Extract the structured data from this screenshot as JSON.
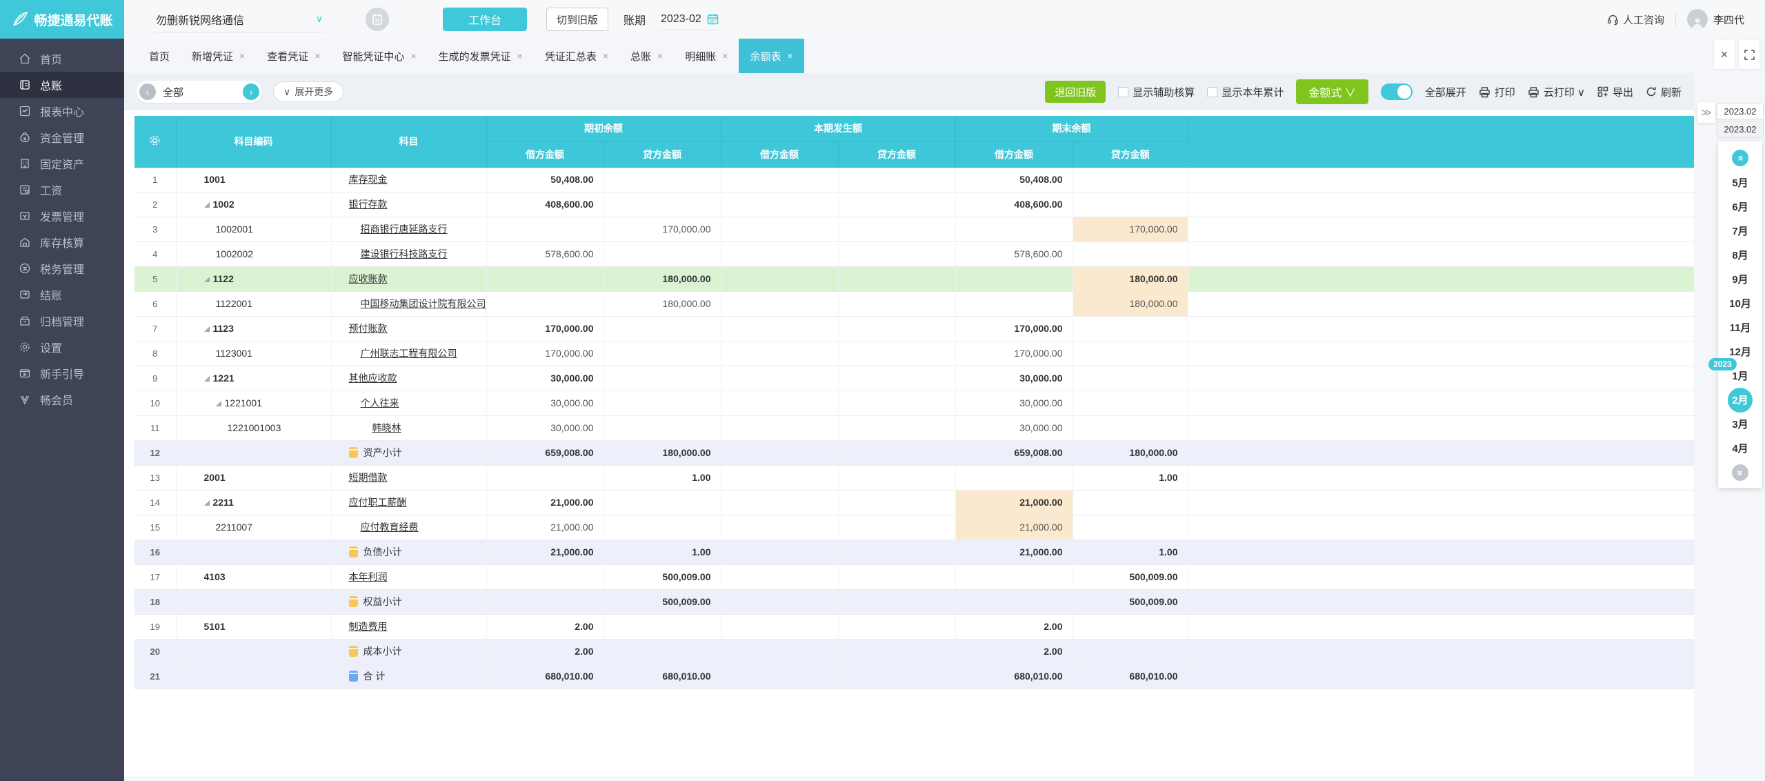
{
  "topbar": {
    "brand": "畅捷通易代账",
    "company": "勿删新锐网络通信",
    "workbench": "工作台",
    "switch_old": "切到旧版",
    "period_label": "账期",
    "period_value": "2023-02",
    "consult": "人工咨询",
    "username": "李四代"
  },
  "sidebar": {
    "items": [
      {
        "label": "首页",
        "icon": "home-icon",
        "active": false
      },
      {
        "label": "总账",
        "icon": "ledger-icon",
        "active": true
      },
      {
        "label": "报表中心",
        "icon": "report-icon",
        "active": false
      },
      {
        "label": "资金管理",
        "icon": "funds-icon",
        "active": false
      },
      {
        "label": "固定资产",
        "icon": "fixed-asset-icon",
        "active": false
      },
      {
        "label": "工资",
        "icon": "salary-icon",
        "active": false
      },
      {
        "label": "发票管理",
        "icon": "invoice-icon",
        "active": false
      },
      {
        "label": "库存核算",
        "icon": "inventory-icon",
        "active": false
      },
      {
        "label": "税务管理",
        "icon": "tax-icon",
        "active": false
      },
      {
        "label": "结账",
        "icon": "closing-icon",
        "active": false
      },
      {
        "label": "归档管理",
        "icon": "archive-icon",
        "active": false
      },
      {
        "label": "设置",
        "icon": "settings-icon",
        "active": false
      },
      {
        "label": "新手引导",
        "icon": "guide-icon",
        "active": false
      },
      {
        "label": "畅会员",
        "icon": "member-icon",
        "active": false
      }
    ]
  },
  "tabs": {
    "items": [
      {
        "label": "首页",
        "closable": false,
        "active": false
      },
      {
        "label": "新增凭证",
        "closable": true,
        "active": false
      },
      {
        "label": "查看凭证",
        "closable": true,
        "active": false
      },
      {
        "label": "智能凭证中心",
        "closable": true,
        "active": false
      },
      {
        "label": "生成的发票凭证",
        "closable": true,
        "active": false
      },
      {
        "label": "凭证汇总表",
        "closable": true,
        "active": false
      },
      {
        "label": "总账",
        "closable": true,
        "active": false
      },
      {
        "label": "明细账",
        "closable": true,
        "active": false
      },
      {
        "label": "余额表",
        "closable": true,
        "active": true
      }
    ],
    "close_icon": "×",
    "fullscreen_icon": "fullscreen"
  },
  "toolbar": {
    "scope_value": "全部",
    "prev_icon": "‹",
    "next_icon": "›",
    "expand_more": "展开更多",
    "expand_chevron": "∨",
    "back_old": "退回旧版",
    "checkbox_aux": "显示辅助核算",
    "checkbox_ytd": "显示本年累计",
    "amount_style": "金额式 ∨",
    "toggle_label": "全部展开",
    "print": "打印",
    "cloud_print": "云打印 ∨",
    "export": "导出",
    "refresh": "刷新"
  },
  "table": {
    "header": {
      "code": "科目编码",
      "account": "科目",
      "groups": [
        "期初余额",
        "本期发生额",
        "期末余额"
      ],
      "debit_label": "借方金额",
      "credit_label": "贷方金额"
    },
    "rows": [
      {
        "num": "1",
        "code": "1001",
        "name": "库存现金",
        "level": 0,
        "arrow": false,
        "kind": "account",
        "highlight": null,
        "values": [
          "50,408.00",
          "",
          "",
          "",
          "50,408.00",
          ""
        ],
        "orange": []
      },
      {
        "num": "2",
        "code": "1002",
        "name": "银行存款",
        "level": 0,
        "arrow": true,
        "kind": "account",
        "highlight": null,
        "values": [
          "408,600.00",
          "",
          "",
          "",
          "408,600.00",
          ""
        ],
        "orange": []
      },
      {
        "num": "3",
        "code": "1002001",
        "name": "招商银行唐延路支行",
        "level": 1,
        "arrow": false,
        "kind": "account",
        "highlight": null,
        "values": [
          "",
          "170,000.00",
          "",
          "",
          "",
          "170,000.00"
        ],
        "orange": [
          5
        ]
      },
      {
        "num": "4",
        "code": "1002002",
        "name": "建设银行科技路支行",
        "level": 1,
        "arrow": false,
        "kind": "account",
        "highlight": null,
        "values": [
          "578,600.00",
          "",
          "",
          "",
          "578,600.00",
          ""
        ],
        "orange": []
      },
      {
        "num": "5",
        "code": "1122",
        "name": "应收账款",
        "level": 0,
        "arrow": true,
        "kind": "account",
        "highlight": "green",
        "values": [
          "",
          "180,000.00",
          "",
          "",
          "",
          "180,000.00"
        ],
        "orange": [
          5
        ]
      },
      {
        "num": "6",
        "code": "1122001",
        "name": "中国移动集团设计院有限公司陕",
        "level": 1,
        "arrow": false,
        "kind": "account",
        "highlight": null,
        "values": [
          "",
          "180,000.00",
          "",
          "",
          "",
          "180,000.00"
        ],
        "orange": [
          5
        ]
      },
      {
        "num": "7",
        "code": "1123",
        "name": "预付账款",
        "level": 0,
        "arrow": true,
        "kind": "account",
        "highlight": null,
        "values": [
          "170,000.00",
          "",
          "",
          "",
          "170,000.00",
          ""
        ],
        "orange": []
      },
      {
        "num": "8",
        "code": "1123001",
        "name": "广州联志工程有限公司",
        "level": 1,
        "arrow": false,
        "kind": "account",
        "highlight": null,
        "values": [
          "170,000.00",
          "",
          "",
          "",
          "170,000.00",
          ""
        ],
        "orange": []
      },
      {
        "num": "9",
        "code": "1221",
        "name": "其他应收款",
        "level": 0,
        "arrow": true,
        "kind": "account",
        "highlight": null,
        "values": [
          "30,000.00",
          "",
          "",
          "",
          "30,000.00",
          ""
        ],
        "orange": []
      },
      {
        "num": "10",
        "code": "1221001",
        "name": "个人往来",
        "level": 1,
        "arrow": true,
        "kind": "account",
        "highlight": null,
        "values": [
          "30,000.00",
          "",
          "",
          "",
          "30,000.00",
          ""
        ],
        "orange": []
      },
      {
        "num": "11",
        "code": "1221001003",
        "name": "韩晓林",
        "level": 2,
        "arrow": false,
        "kind": "account",
        "highlight": null,
        "values": [
          "30,000.00",
          "",
          "",
          "",
          "30,000.00",
          ""
        ],
        "orange": []
      },
      {
        "num": "12",
        "code": "",
        "name": "资产小计",
        "level": 0,
        "arrow": false,
        "kind": "subtotal",
        "highlight": null,
        "values": [
          "659,008.00",
          "180,000.00",
          "",
          "",
          "659,008.00",
          "180,000.00"
        ],
        "orange": []
      },
      {
        "num": "13",
        "code": "2001",
        "name": "短期借款",
        "level": 0,
        "arrow": false,
        "kind": "account",
        "highlight": null,
        "values": [
          "",
          "1.00",
          "",
          "",
          "",
          "1.00"
        ],
        "orange": []
      },
      {
        "num": "14",
        "code": "2211",
        "name": "应付职工薪酬",
        "level": 0,
        "arrow": true,
        "kind": "account",
        "highlight": null,
        "values": [
          "21,000.00",
          "",
          "",
          "",
          "21,000.00",
          ""
        ],
        "orange": [
          4
        ]
      },
      {
        "num": "15",
        "code": "2211007",
        "name": "应付教育经费",
        "level": 1,
        "arrow": false,
        "kind": "account",
        "highlight": null,
        "values": [
          "21,000.00",
          "",
          "",
          "",
          "21,000.00",
          ""
        ],
        "orange": [
          4
        ]
      },
      {
        "num": "16",
        "code": "",
        "name": "负债小计",
        "level": 0,
        "arrow": false,
        "kind": "subtotal",
        "highlight": null,
        "values": [
          "21,000.00",
          "1.00",
          "",
          "",
          "21,000.00",
          "1.00"
        ],
        "orange": []
      },
      {
        "num": "17",
        "code": "4103",
        "name": "本年利润",
        "level": 0,
        "arrow": false,
        "kind": "account",
        "highlight": null,
        "values": [
          "",
          "500,009.00",
          "",
          "",
          "",
          "500,009.00"
        ],
        "orange": []
      },
      {
        "num": "18",
        "code": "",
        "name": "权益小计",
        "level": 0,
        "arrow": false,
        "kind": "subtotal",
        "highlight": null,
        "values": [
          "",
          "500,009.00",
          "",
          "",
          "",
          "500,009.00"
        ],
        "orange": []
      },
      {
        "num": "19",
        "code": "5101",
        "name": "制造费用",
        "level": 0,
        "arrow": false,
        "kind": "account",
        "highlight": null,
        "values": [
          "2.00",
          "",
          "",
          "",
          "2.00",
          ""
        ],
        "orange": []
      },
      {
        "num": "20",
        "code": "",
        "name": "成本小计",
        "level": 0,
        "arrow": false,
        "kind": "subtotal",
        "highlight": null,
        "values": [
          "2.00",
          "",
          "",
          "",
          "2.00",
          ""
        ],
        "orange": []
      },
      {
        "num": "21",
        "code": "",
        "name": "合 计",
        "level": 0,
        "arrow": false,
        "kind": "total",
        "highlight": null,
        "values": [
          "680,010.00",
          "680,010.00",
          "",
          "",
          "680,010.00",
          "680,010.00"
        ],
        "orange": []
      }
    ]
  },
  "month_panel": {
    "collapse_icon": "≫",
    "period_boxes": [
      "2023.02",
      "2023.02"
    ],
    "months": [
      "5月",
      "6月",
      "7月",
      "8月",
      "9月",
      "10月",
      "11月",
      "12月",
      "1月",
      "2月",
      "3月",
      "4月"
    ],
    "selected": "2月",
    "year_badge": "2023",
    "year_badge_on": "1月"
  },
  "colors": {
    "accent_teal": "#3EC7D9",
    "accent_green": "#7FC51D",
    "sidebar_dark": "#3F4356",
    "row_green": "#DBF3D3",
    "row_lavender": "#EDF0FA",
    "cell_orange": "#FBE9CF"
  }
}
